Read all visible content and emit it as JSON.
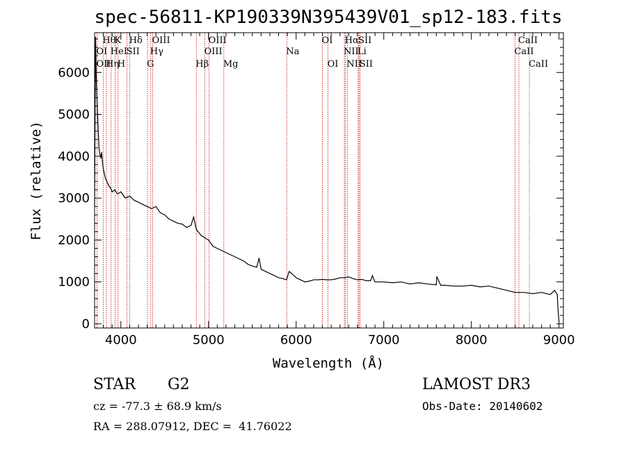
{
  "chart_data": {
    "type": "line",
    "title": "spec-56811-KP190339N395439V01_sp12-183.fits",
    "xlabel": "Wavelength (Å)",
    "ylabel": "Flux (relative)",
    "xlim": [
      3700,
      9050
    ],
    "ylim": [
      -100,
      6950
    ],
    "xticks": [
      4000,
      5000,
      6000,
      7000,
      8000,
      9000
    ],
    "yticks": [
      0,
      1000,
      2000,
      3000,
      4000,
      5000,
      6000
    ],
    "grid": false,
    "series": [
      {
        "name": "spectrum",
        "x": [
          3700,
          3710,
          3720,
          3730,
          3740,
          3750,
          3760,
          3770,
          3780,
          3790,
          3800,
          3820,
          3840,
          3860,
          3880,
          3900,
          3930,
          3960,
          4000,
          4050,
          4100,
          4150,
          4200,
          4250,
          4300,
          4350,
          4400,
          4450,
          4500,
          4550,
          4600,
          4650,
          4700,
          4750,
          4800,
          4830,
          4861,
          4880,
          4920,
          4960,
          5000,
          5050,
          5100,
          5150,
          5200,
          5250,
          5300,
          5350,
          5400,
          5450,
          5500,
          5550,
          5577,
          5600,
          5650,
          5700,
          5750,
          5800,
          5850,
          5890,
          5920,
          5950,
          6000,
          6050,
          6100,
          6150,
          6200,
          6250,
          6300,
          6350,
          6400,
          6450,
          6500,
          6550,
          6600,
          6650,
          6700,
          6750,
          6800,
          6850,
          6870,
          6900,
          6950,
          7000,
          7100,
          7200,
          7300,
          7400,
          7500,
          7600,
          7605,
          7650,
          7700,
          7800,
          7900,
          8000,
          8100,
          8200,
          8300,
          8400,
          8500,
          8600,
          8700,
          8800,
          8900,
          8950,
          8980,
          8990,
          9000
        ],
        "y": [
          2800,
          6850,
          5800,
          5200,
          4700,
          4200,
          4050,
          3950,
          4100,
          3850,
          3700,
          3500,
          3400,
          3300,
          3250,
          3150,
          3200,
          3100,
          3150,
          3000,
          3050,
          2950,
          2900,
          2850,
          2800,
          2750,
          2800,
          2650,
          2600,
          2500,
          2450,
          2400,
          2380,
          2300,
          2350,
          2550,
          2250,
          2200,
          2100,
          2050,
          2000,
          1850,
          1800,
          1750,
          1700,
          1650,
          1600,
          1550,
          1500,
          1420,
          1380,
          1350,
          1570,
          1300,
          1250,
          1200,
          1150,
          1100,
          1080,
          1050,
          1250,
          1200,
          1100,
          1050,
          1000,
          1020,
          1050,
          1050,
          1060,
          1050,
          1050,
          1070,
          1100,
          1100,
          1120,
          1080,
          1050,
          1060,
          1030,
          1030,
          1150,
          1000,
          1000,
          1000,
          980,
          1000,
          950,
          980,
          950,
          930,
          1130,
          920,
          920,
          900,
          900,
          920,
          880,
          900,
          850,
          800,
          750,
          750,
          720,
          750,
          700,
          800,
          700,
          300,
          50
        ]
      }
    ],
    "line_labels_row1": [
      {
        "text": "Hθ",
        "x": 3798
      },
      {
        "text": "K",
        "x": 3934
      },
      {
        "text": "Hδ",
        "x": 4102
      },
      {
        "text": "OIII",
        "x": 4363
      },
      {
        "text": "OIII",
        "x": 5007
      },
      {
        "text": "OI",
        "x": 6300
      },
      {
        "text": "Hα",
        "x": 6563
      },
      {
        "text": "SII",
        "x": 6717
      },
      {
        "text": "CaII",
        "x": 8542
      }
    ],
    "line_labels_row2": [
      {
        "text": "OI",
        "x": 3727
      },
      {
        "text": "HeI",
        "x": 3889
      },
      {
        "text": "SII",
        "x": 4070
      },
      {
        "text": "Hγ",
        "x": 4341
      },
      {
        "text": "OIII",
        "x": 4959
      },
      {
        "text": "Na",
        "x": 5893
      },
      {
        "text": "NII",
        "x": 6550
      },
      {
        "text": "Li",
        "x": 6708
      },
      {
        "text": "CaII",
        "x": 8498
      }
    ],
    "line_labels_row3": [
      {
        "text": "OII",
        "x": 3727
      },
      {
        "text": "Hη",
        "x": 3835
      },
      {
        "text": "H",
        "x": 3968
      },
      {
        "text": "G",
        "x": 4304
      },
      {
        "text": "Hβ",
        "x": 4861
      },
      {
        "text": "Mg",
        "x": 5175
      },
      {
        "text": "OI",
        "x": 6364
      },
      {
        "text": "NII",
        "x": 6584
      },
      {
        "text": "SII",
        "x": 6731
      },
      {
        "text": "CaII",
        "x": 8662
      }
    ],
    "marker_lines": [
      3727,
      3798,
      3835,
      3889,
      3934,
      3968,
      4070,
      4102,
      4304,
      4341,
      4363,
      4861,
      4959,
      5007,
      5175,
      5893,
      6300,
      6364,
      6550,
      6563,
      6584,
      6708,
      6717,
      6731,
      8498,
      8542,
      8662
    ]
  },
  "footer": {
    "class_label": "STAR",
    "subclass_label": "G2",
    "survey": "LAMOST DR3",
    "redshift": "cz = -77.3 ± 68.9 km/s",
    "obs_date": "Obs-Date: 20140602",
    "coords": "RA = 288.07912, DEC =  41.76022"
  },
  "colors": {
    "line": "#000000",
    "marker": "#cc0000",
    "axis": "#000000"
  }
}
